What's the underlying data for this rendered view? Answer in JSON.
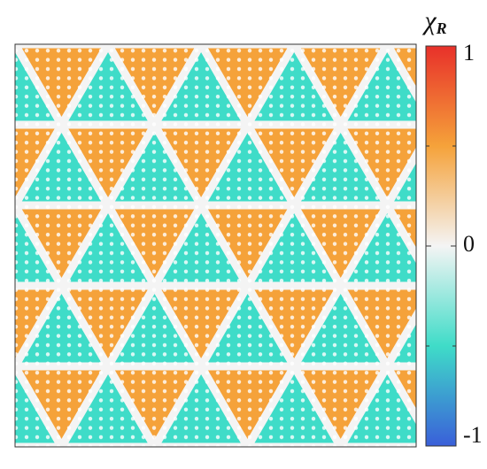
{
  "chart_data": {
    "type": "triangle-lattice",
    "colorbar_label": "χ",
    "colorbar_label_subscript": "R",
    "clim": [
      -1,
      1
    ],
    "cticks": [
      -1,
      0,
      1
    ],
    "minor_cticks": [
      -0.5,
      0.5
    ],
    "colormap": [
      [
        -1,
        "#3a5fd9"
      ],
      [
        -0.5,
        "#3fdcc8"
      ],
      [
        0,
        "#f4f4f4"
      ],
      [
        0.5,
        "#f5a23a"
      ],
      [
        1,
        "#e8302a"
      ]
    ],
    "values": [
      [
        -0.5,
        0.5,
        -0.5,
        0.5,
        -0.5,
        0.5,
        -0.5,
        0.5,
        -0.5,
        0.5,
        -0.5
      ],
      [
        0.5,
        -0.5,
        0.5,
        -0.5,
        0.5,
        -0.5,
        0.5,
        -0.5,
        0.5,
        -0.5,
        0.5
      ],
      [
        -0.5,
        0.5,
        -0.5,
        0.5,
        -0.5,
        0.5,
        -0.5,
        0.5,
        -0.5,
        0.5,
        -0.5
      ],
      [
        0.5,
        -0.5,
        0.5,
        -0.5,
        0.5,
        -0.5,
        0.5,
        -0.5,
        0.5,
        -0.5,
        0.5
      ],
      [
        -0.5,
        0.5,
        -0.5,
        0.5,
        -0.5,
        0.5,
        -0.5,
        0.5,
        -0.5,
        0.5,
        -0.5
      ]
    ]
  }
}
